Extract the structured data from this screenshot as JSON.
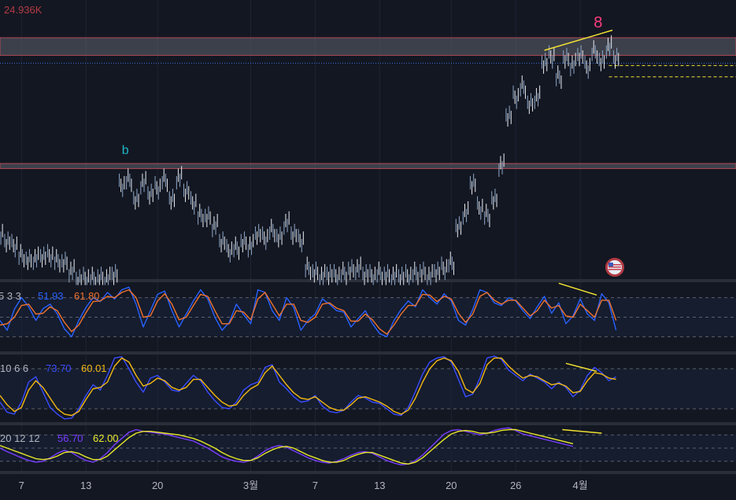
{
  "colors": {
    "background": "#131722",
    "panel_shade": "#17233a",
    "grid": "#1f2433",
    "candle": "#e8ecf1",
    "zone_fill": "#5f626e",
    "zone_border": "#b24a55",
    "level_line": "#3c6fd8",
    "trend_yellow": "#f2e233",
    "price_tag": "#b23b43",
    "label_b": "#1fb6c9",
    "label_8": "#ff3d7f",
    "stoch_k": "#2962ff",
    "stoch_d": "#f0732d",
    "stoch2_k": "#3a4cff",
    "stoch2_d": "#f5b914",
    "stoch3_k": "#7a3dff",
    "stoch3_d": "#e8e82a",
    "axis_text": "#b2b5be",
    "separator": "#2a2e39"
  },
  "price_scale_label": "24.936K",
  "chart_data": [
    {
      "type": "candlestick",
      "name": "price",
      "annotations": [
        {
          "text": "b",
          "x_day": 17.5,
          "color": "label_b"
        },
        {
          "text": "8",
          "x_day": 83.5,
          "color": "label_8"
        }
      ],
      "ylim": [
        0,
        100
      ],
      "zones": [
        {
          "from": 88,
          "to": 95
        },
        {
          "from": 43,
          "to": 45
        }
      ],
      "level_dotted": 83,
      "level_dashed": [
        83,
        81
      ],
      "trendline": {
        "x": [
          76,
          85.5
        ],
        "y": [
          90,
          98
        ]
      },
      "flag_icon": "us-flag-icon",
      "x": [
        0,
        1,
        2,
        3,
        4,
        5,
        6,
        7,
        8,
        9,
        10,
        11,
        12,
        13,
        14,
        15,
        16,
        17,
        18,
        19,
        20,
        21,
        22,
        23,
        24,
        25,
        26,
        27,
        28,
        29,
        30,
        31,
        32,
        33,
        34,
        35,
        36,
        37,
        38,
        39,
        40,
        41,
        42,
        43,
        44,
        45,
        46,
        47,
        48,
        49,
        50,
        51,
        52,
        53,
        54,
        55,
        56,
        57,
        58,
        59,
        60,
        61,
        62,
        63,
        64,
        65,
        66,
        67,
        68,
        69,
        70,
        71,
        72,
        73,
        74,
        75,
        76,
        77,
        78,
        79,
        80,
        81,
        82,
        83,
        84,
        85,
        86
      ],
      "y": [
        17,
        15,
        13,
        9,
        7,
        8,
        9,
        9,
        7,
        6,
        3,
        0,
        0,
        0,
        0,
        0,
        2,
        37,
        39,
        31,
        38,
        34,
        36,
        39,
        31,
        40,
        35,
        30,
        25,
        24,
        21,
        15,
        11,
        12,
        14,
        13,
        18,
        16,
        19,
        16,
        22,
        18,
        15,
        4,
        2,
        1,
        2,
        1,
        2,
        3,
        4,
        2,
        1,
        2,
        1,
        1,
        1,
        1,
        2,
        2,
        1,
        3,
        4,
        6,
        20,
        26,
        38,
        28,
        25,
        31,
        45,
        65,
        72,
        76,
        69,
        72,
        86,
        88,
        80,
        87,
        85,
        89,
        84,
        90,
        86,
        92,
        88
      ]
    },
    {
      "type": "line",
      "name": "stoch-5-3-3",
      "label": "5 3 3",
      "readouts": [
        {
          "text": "51.93",
          "color": "stoch_k"
        },
        {
          "text": "61.80",
          "color": "stoch_d"
        }
      ],
      "ylim": [
        0,
        100
      ],
      "levels": [
        80,
        50,
        20
      ],
      "trendline": {
        "x": [
          78,
          83.3
        ],
        "y": [
          102,
          84
        ]
      },
      "series": [
        {
          "name": "k",
          "color": "stoch_k",
          "values": [
            45,
            30,
            62,
            80,
            66,
            45,
            63,
            70,
            55,
            32,
            20,
            45,
            65,
            80,
            74,
            88,
            78,
            92,
            96,
            70,
            35,
            60,
            85,
            90,
            60,
            35,
            55,
            75,
            92,
            78,
            50,
            30,
            42,
            70,
            54,
            40,
            92,
            88,
            60,
            45,
            80,
            65,
            30,
            45,
            55,
            78,
            70,
            60,
            58,
            35,
            48,
            60,
            40,
            25,
            20,
            45,
            62,
            75,
            66,
            92,
            80,
            70,
            86,
            75,
            45,
            38,
            62,
            92,
            88,
            72,
            68,
            80,
            75,
            60,
            48,
            66,
            82,
            56,
            72,
            40,
            52,
            78,
            55,
            45,
            86,
            72,
            30
          ]
        },
        {
          "name": "d",
          "color": "stoch_d",
          "values": [
            38,
            40,
            50,
            68,
            70,
            55,
            56,
            66,
            60,
            42,
            28,
            38,
            57,
            74,
            75,
            82,
            80,
            88,
            92,
            80,
            50,
            52,
            75,
            86,
            70,
            46,
            50,
            68,
            85,
            82,
            60,
            40,
            40,
            60,
            58,
            46,
            78,
            88,
            70,
            52,
            70,
            70,
            45,
            42,
            50,
            70,
            72,
            64,
            60,
            44,
            44,
            55,
            46,
            32,
            24,
            38,
            55,
            68,
            68,
            85,
            84,
            74,
            82,
            78,
            56,
            42,
            55,
            82,
            88,
            76,
            70,
            76,
            76,
            64,
            52,
            60,
            76,
            64,
            68,
            52,
            50,
            70,
            60,
            50,
            76,
            76,
            45
          ]
        }
      ]
    },
    {
      "type": "line",
      "name": "stoch-10-6-6",
      "label": "10 6 6",
      "readouts": [
        {
          "text": "73.70",
          "color": "stoch2_k"
        },
        {
          "text": "60.01",
          "color": "stoch2_d"
        }
      ],
      "ylim": [
        0,
        100
      ],
      "levels": [
        80,
        20
      ],
      "trendline": {
        "x": [
          79,
          83.3
        ],
        "y": [
          88,
          76
        ]
      },
      "series": [
        {
          "name": "k",
          "color": "stoch2_k",
          "values": [
            30,
            15,
            12,
            30,
            60,
            68,
            45,
            22,
            12,
            5,
            6,
            20,
            40,
            56,
            48,
            70,
            96,
            98,
            80,
            60,
            45,
            66,
            70,
            60,
            48,
            46,
            58,
            70,
            62,
            45,
            32,
            22,
            20,
            30,
            48,
            56,
            60,
            82,
            86,
            60,
            50,
            38,
            30,
            32,
            40,
            24,
            16,
            14,
            18,
            30,
            40,
            36,
            30,
            28,
            20,
            12,
            10,
            22,
            46,
            72,
            90,
            96,
            98,
            90,
            64,
            38,
            42,
            66,
            96,
            99,
            94,
            78,
            70,
            62,
            72,
            66,
            60,
            50,
            60,
            52,
            38,
            48,
            70,
            82,
            74,
            62,
            68
          ]
        },
        {
          "name": "d",
          "color": "stoch2_d",
          "values": [
            40,
            26,
            16,
            22,
            48,
            62,
            52,
            36,
            20,
            12,
            10,
            16,
            34,
            50,
            52,
            60,
            84,
            96,
            90,
            70,
            54,
            58,
            66,
            62,
            52,
            48,
            52,
            64,
            64,
            52,
            40,
            30,
            24,
            26,
            40,
            50,
            56,
            74,
            84,
            70,
            56,
            44,
            36,
            34,
            38,
            30,
            22,
            18,
            18,
            26,
            36,
            38,
            34,
            30,
            24,
            16,
            12,
            18,
            36,
            60,
            80,
            92,
            96,
            92,
            76,
            50,
            44,
            58,
            86,
            96,
            96,
            84,
            74,
            66,
            70,
            68,
            62,
            56,
            58,
            54,
            44,
            46,
            62,
            74,
            72,
            66,
            64
          ]
        }
      ]
    },
    {
      "type": "line",
      "name": "stoch-20-12-12",
      "label": "20 12 12",
      "readouts": [
        {
          "text": "56.70",
          "color": "stoch3_k"
        },
        {
          "text": "62.00",
          "color": "stoch3_d"
        }
      ],
      "ylim": [
        0,
        100
      ],
      "levels": [
        80,
        50,
        20
      ],
      "trendline": {
        "x": [
          78.5,
          84
        ],
        "y": [
          92,
          84
        ]
      },
      "series": [
        {
          "name": "k",
          "color": "stoch3_k",
          "values": [
            50,
            42,
            35,
            28,
            22,
            18,
            20,
            28,
            38,
            45,
            40,
            30,
            22,
            18,
            26,
            40,
            58,
            72,
            86,
            92,
            88,
            86,
            84,
            82,
            78,
            74,
            70,
            66,
            58,
            50,
            40,
            30,
            24,
            20,
            18,
            22,
            32,
            44,
            52,
            56,
            52,
            44,
            36,
            28,
            22,
            18,
            16,
            20,
            26,
            34,
            40,
            42,
            38,
            30,
            22,
            16,
            12,
            14,
            22,
            34,
            50,
            66,
            82,
            90,
            92,
            88,
            84,
            80,
            84,
            90,
            94,
            96,
            90,
            82,
            78,
            74,
            70,
            66,
            62,
            58,
            54
          ]
        },
        {
          "name": "d",
          "color": "stoch3_d",
          "values": [
            56,
            50,
            44,
            38,
            32,
            26,
            24,
            26,
            32,
            40,
            42,
            38,
            30,
            24,
            24,
            32,
            46,
            60,
            74,
            84,
            88,
            88,
            86,
            84,
            82,
            80,
            76,
            72,
            66,
            58,
            50,
            40,
            32,
            26,
            22,
            22,
            28,
            38,
            46,
            52,
            54,
            50,
            42,
            34,
            28,
            22,
            18,
            18,
            22,
            30,
            36,
            40,
            40,
            34,
            28,
            22,
            16,
            14,
            18,
            28,
            42,
            56,
            70,
            82,
            88,
            90,
            88,
            84,
            84,
            86,
            90,
            92,
            92,
            88,
            84,
            80,
            76,
            72,
            68,
            64,
            60
          ]
        }
      ]
    },
    {
      "type": "axis",
      "name": "time-axis",
      "ticks": [
        {
          "text": "7",
          "x_day": 3
        },
        {
          "text": "13",
          "x_day": 12
        },
        {
          "text": "20",
          "x_day": 22
        },
        {
          "text": "3월",
          "x_day": 35
        },
        {
          "text": "7",
          "x_day": 44
        },
        {
          "text": "13",
          "x_day": 53
        },
        {
          "text": "20",
          "x_day": 63
        },
        {
          "text": "26",
          "x_day": 72
        },
        {
          "text": "4월",
          "x_day": 81
        }
      ]
    }
  ]
}
